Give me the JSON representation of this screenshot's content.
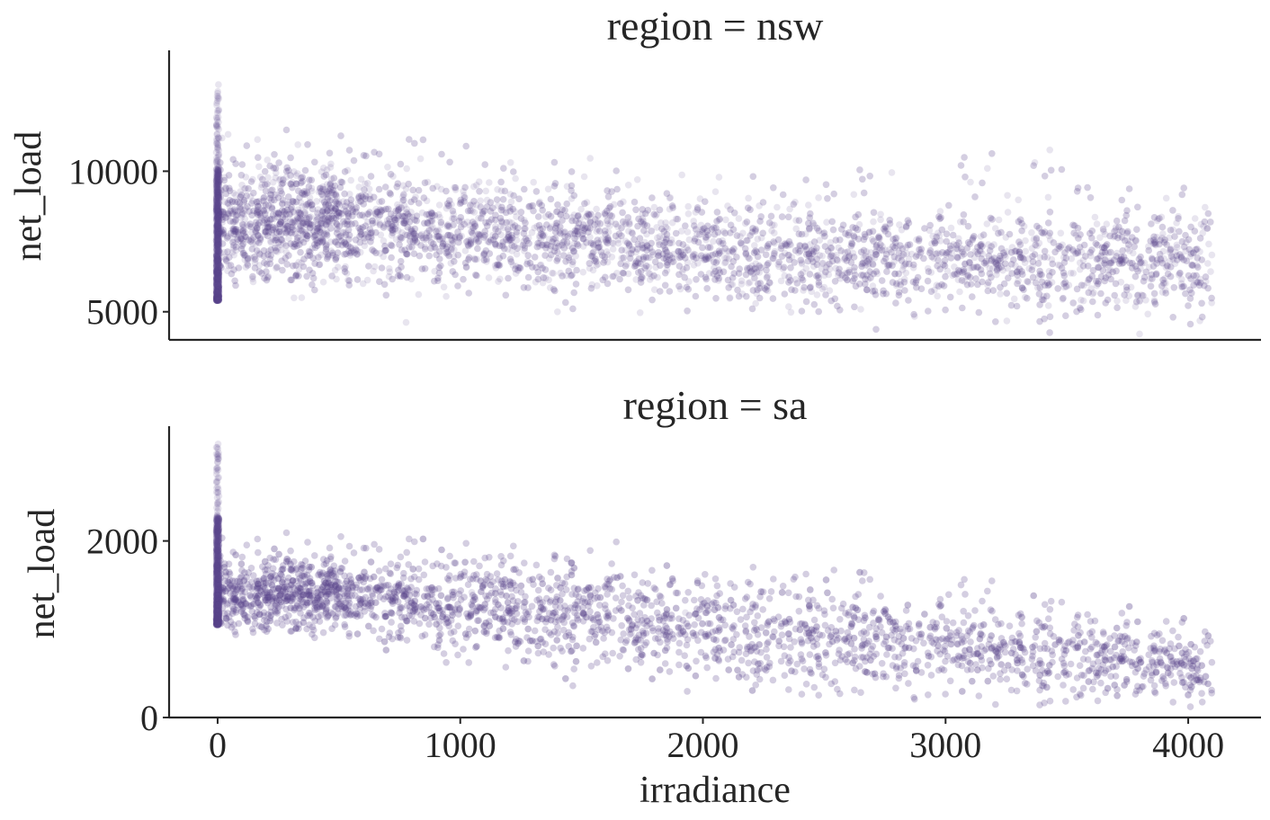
{
  "chart_data": {
    "type": "scatter",
    "xlabel": "irradiance",
    "x_ticks": [
      0,
      1000,
      2000,
      3000,
      4000
    ],
    "xlim": [
      -200,
      4300
    ],
    "point_color": "#5b4a91",
    "point_alpha": 0.14,
    "panels": [
      {
        "title": "region = nsw",
        "ylabel": "net_load",
        "ylim": [
          4000,
          14300
        ],
        "y_ticks": [
          5000,
          10000
        ],
        "series": [
          {
            "description_points": [
              {
                "x": 0,
                "y_range": [
                  5400,
                  13200
                ]
              },
              {
                "x": 500,
                "y_center": 8200,
                "y_spread": [
                  6000,
                  11500
                ]
              },
              {
                "x": 1000,
                "y_center": 7900,
                "y_spread": [
                  5900,
                  11000
                ]
              },
              {
                "x": 1500,
                "y_center": 7500,
                "y_spread": [
                  5700,
                  10500
                ]
              },
              {
                "x": 2000,
                "y_center": 7100,
                "y_spread": [
                  5200,
                  10000
                ]
              },
              {
                "x": 2500,
                "y_center": 6900,
                "y_spread": [
                  5000,
                  10000
                ]
              },
              {
                "x": 3000,
                "y_center": 6800,
                "y_spread": [
                  4800,
                  10500
                ]
              },
              {
                "x": 3500,
                "y_center": 6700,
                "y_spread": [
                  4700,
                  11000
                ]
              },
              {
                "x": 4000,
                "y_center": 6900,
                "y_spread": [
                  4700,
                  8500
                ]
              }
            ]
          }
        ]
      },
      {
        "title": "region = sa",
        "ylabel": "net_load",
        "ylim": [
          0,
          3300
        ],
        "y_ticks": [
          0,
          2000
        ],
        "series": [
          {
            "description_points": [
              {
                "x": 0,
                "y_range": [
                  1050,
                  3100
                ]
              },
              {
                "x": 500,
                "y_center": 1400,
                "y_spread": [
                  950,
                  2100
                ]
              },
              {
                "x": 1000,
                "y_center": 1300,
                "y_spread": [
                  700,
                  2000
                ]
              },
              {
                "x": 1500,
                "y_center": 1150,
                "y_spread": [
                  550,
                  1900
                ]
              },
              {
                "x": 2000,
                "y_center": 1000,
                "y_spread": [
                  350,
                  1800
                ]
              },
              {
                "x": 2500,
                "y_center": 900,
                "y_spread": [
                  250,
                  1700
                ]
              },
              {
                "x": 3000,
                "y_center": 800,
                "y_spread": [
                  200,
                  1600
                ]
              },
              {
                "x": 3500,
                "y_center": 700,
                "y_spread": [
                  150,
                  1500
                ]
              },
              {
                "x": 4000,
                "y_center": 600,
                "y_spread": [
                  150,
                  1000
                ]
              }
            ]
          }
        ]
      }
    ]
  }
}
